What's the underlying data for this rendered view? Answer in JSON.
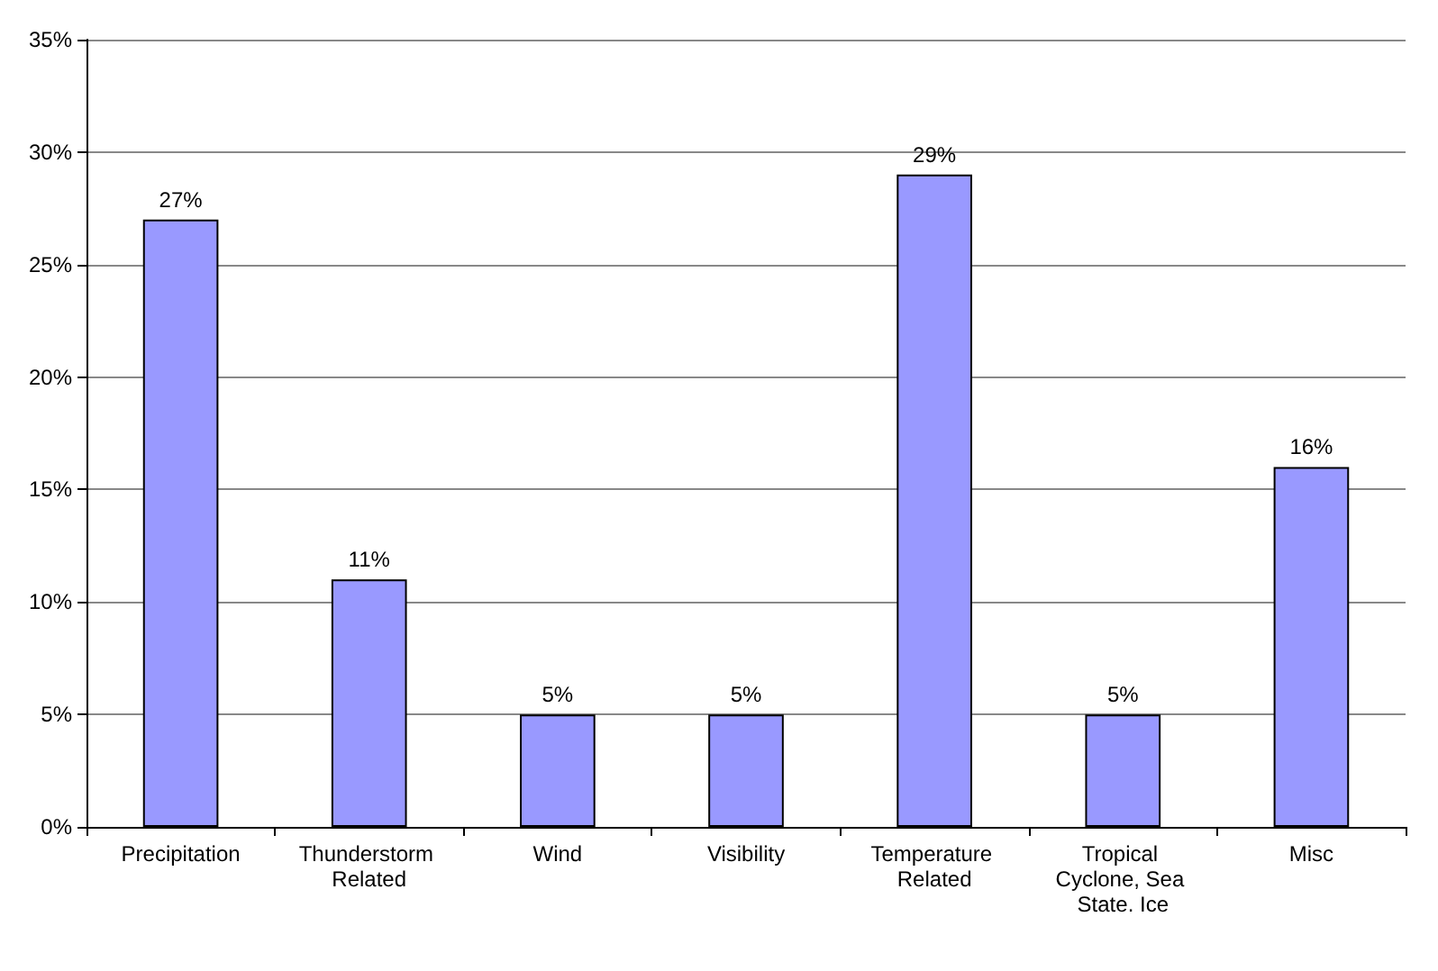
{
  "chart_data": {
    "type": "bar",
    "categories": [
      "Precipitation",
      "Thunderstorm Related",
      "Wind",
      "Visibility",
      "Temperature Related",
      "Tropical Cyclone, Sea State. Ice",
      "Misc"
    ],
    "values": [
      27,
      11,
      5,
      5,
      29,
      5,
      16
    ],
    "color": "#9999ff",
    "value_labels": [
      "27%",
      "11%",
      "5%",
      "5%",
      "29%",
      "5%",
      "16%"
    ],
    "ylim": [
      0,
      35
    ],
    "yticks": [
      {
        "value": 0,
        "label": "0%"
      },
      {
        "value": 5,
        "label": "5%"
      },
      {
        "value": 10,
        "label": "10%"
      },
      {
        "value": 15,
        "label": "15%"
      },
      {
        "value": 20,
        "label": "20%"
      },
      {
        "value": 25,
        "label": "25%"
      },
      {
        "value": 30,
        "label": "30%"
      },
      {
        "value": 35,
        "label": "35%"
      }
    ],
    "grid": "y"
  }
}
